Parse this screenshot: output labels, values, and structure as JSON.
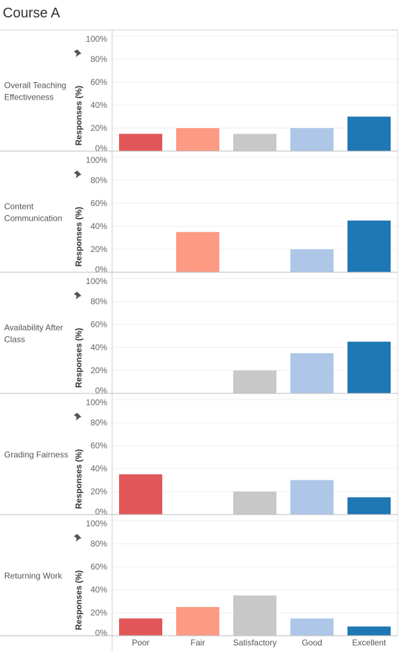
{
  "title": "Course A",
  "chart_data": {
    "type": "bar",
    "categories": [
      "Poor",
      "Fair",
      "Satisfactory",
      "Good",
      "Excellent"
    ],
    "colors": [
      "#e15759",
      "#fc9a84",
      "#c8c8c8",
      "#aec7e8",
      "#1f77b4"
    ],
    "ylabel": "Responses (%)",
    "y_ticks": [
      "0%",
      "20%",
      "40%",
      "60%",
      "80%",
      "100%"
    ],
    "ylim": [
      0,
      100
    ],
    "grid": true,
    "pin_icon": "pin-icon",
    "series": [
      {
        "name": "Overall Teaching Effectiveness",
        "label_lines": [
          "Overall Teaching",
          "Effectiveness"
        ],
        "values": [
          15,
          20,
          15,
          20,
          30
        ]
      },
      {
        "name": "Content Communication",
        "label_lines": [
          "Content",
          "Communication"
        ],
        "values": [
          0,
          35,
          0,
          20,
          45
        ]
      },
      {
        "name": "Availability After Class",
        "label_lines": [
          "Availability After",
          "Class"
        ],
        "values": [
          0,
          0,
          20,
          35,
          45
        ]
      },
      {
        "name": "Grading Fairness",
        "label_lines": [
          "Grading Fairness"
        ],
        "values": [
          35,
          0,
          20,
          30,
          15
        ]
      },
      {
        "name": "Returning Work",
        "label_lines": [
          "Returning Work"
        ],
        "values": [
          15,
          25,
          35,
          15,
          8
        ]
      }
    ]
  }
}
